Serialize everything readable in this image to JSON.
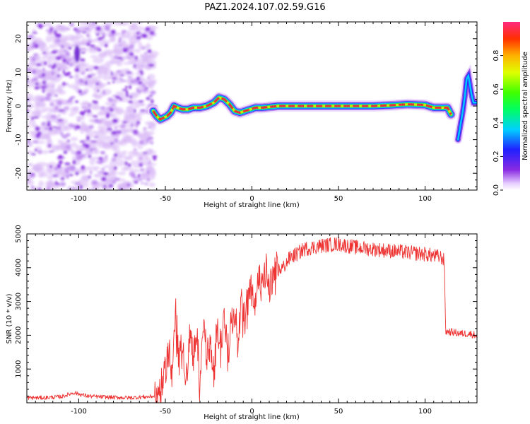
{
  "title": "PAZ1.2024.107.02.59.G16",
  "colors": {
    "snr_line": "#ee3333",
    "ridge_core": "#e8303a",
    "noise_blob": "#8a2be2",
    "noise_halo": "#d9b8f5",
    "axis": "#000000"
  },
  "chart_data": [
    {
      "type": "heatmap",
      "name": "spectrogram",
      "xlabel": "Height of straight line (km)",
      "ylabel": "Frequency (Hz)",
      "xlim": [
        -130,
        130
      ],
      "ylim": [
        -25,
        25
      ],
      "xticks": [
        -100,
        -50,
        0,
        50,
        100
      ],
      "xtick_labels": [
        "-100",
        "-50",
        "0",
        "50",
        "100"
      ],
      "yticks": [
        -20,
        -10,
        0,
        10,
        20
      ],
      "ytick_labels": [
        "-20",
        "-10",
        "0",
        "10",
        "20"
      ],
      "colormap": "rainbow",
      "colorbar": {
        "label": "Normalized spectral amplitude",
        "range": [
          0,
          1
        ],
        "ticks": [
          0.0,
          0.2,
          0.4,
          0.6,
          0.8
        ],
        "tick_labels": [
          "0.0",
          "0.2",
          "0.4",
          "0.6",
          "0.8"
        ]
      },
      "noise_region": {
        "x": [
          -130,
          -56
        ],
        "y": [
          -25,
          25
        ]
      },
      "ridge": {
        "x": [
          -57,
          -55,
          -53,
          -51,
          -49,
          -47,
          -45,
          -43,
          -40,
          -37,
          -34,
          -30,
          -26,
          -22,
          -19,
          -16,
          -13,
          -10,
          -7,
          -4,
          -1,
          2,
          6,
          10,
          15,
          20,
          30,
          40,
          50,
          60,
          70,
          80,
          90,
          100,
          105,
          110,
          113,
          115
        ],
        "y": [
          -1.5,
          -3,
          -4,
          -3.5,
          -3,
          -2,
          0,
          -0.5,
          -1,
          -1,
          -0.5,
          -0.5,
          0,
          1,
          2.5,
          2,
          0.5,
          -1.5,
          -2,
          -1.5,
          -1,
          -0.5,
          -0.5,
          -0.3,
          0,
          0,
          0,
          0,
          0,
          0,
          0,
          0.2,
          0.5,
          0.3,
          -0.5,
          -0.5,
          -0.5,
          -2.5
        ]
      },
      "secondary": {
        "x": [
          119,
          120,
          121,
          122,
          123,
          124,
          125,
          126,
          127,
          128,
          130
        ],
        "y": [
          -10,
          -7,
          -4,
          -1,
          3,
          8,
          9,
          6,
          3,
          1,
          1
        ]
      }
    },
    {
      "type": "line",
      "name": "snr",
      "xlabel": "Height of straight line (km)",
      "ylabel": "SNR (10 * v/v)",
      "xlim": [
        -130,
        130
      ],
      "ylim": [
        0,
        5000
      ],
      "xticks": [
        -100,
        -50,
        0,
        50,
        100
      ],
      "xtick_labels": [
        "-100",
        "-50",
        "0",
        "50",
        "100"
      ],
      "yticks": [
        1000,
        2000,
        3000,
        4000,
        5000
      ],
      "ytick_labels": [
        "1000",
        "2000",
        "3000",
        "4000",
        "5000"
      ],
      "x": [
        -130,
        -120,
        -110,
        -103,
        -100,
        -95,
        -90,
        -80,
        -70,
        -60,
        -55,
        -52,
        -50,
        -48,
        -46,
        -44,
        -42,
        -40,
        -38,
        -36,
        -34,
        -32,
        -30,
        -28,
        -26,
        -24,
        -22,
        -20,
        -18,
        -16,
        -14,
        -12,
        -10,
        -8,
        -6,
        -4,
        -2,
        0,
        2,
        4,
        6,
        8,
        10,
        14,
        18,
        22,
        26,
        30,
        40,
        50,
        60,
        70,
        80,
        90,
        100,
        105,
        110,
        111,
        112,
        115,
        120,
        125,
        130
      ],
      "y": [
        150,
        150,
        180,
        300,
        260,
        200,
        180,
        160,
        150,
        180,
        200,
        500,
        1000,
        1700,
        900,
        2600,
        1200,
        1700,
        500,
        2200,
        1300,
        1900,
        700,
        2600,
        1200,
        1800,
        700,
        2400,
        1600,
        2700,
        1500,
        2300,
        2800,
        1900,
        3200,
        2400,
        3300,
        3400,
        3100,
        3600,
        3300,
        3900,
        3400,
        3900,
        4000,
        4300,
        4400,
        4550,
        4650,
        4700,
        4600,
        4550,
        4500,
        4450,
        4400,
        4350,
        4300,
        4200,
        2100,
        2100,
        2050,
        2050,
        2000
      ]
    }
  ]
}
